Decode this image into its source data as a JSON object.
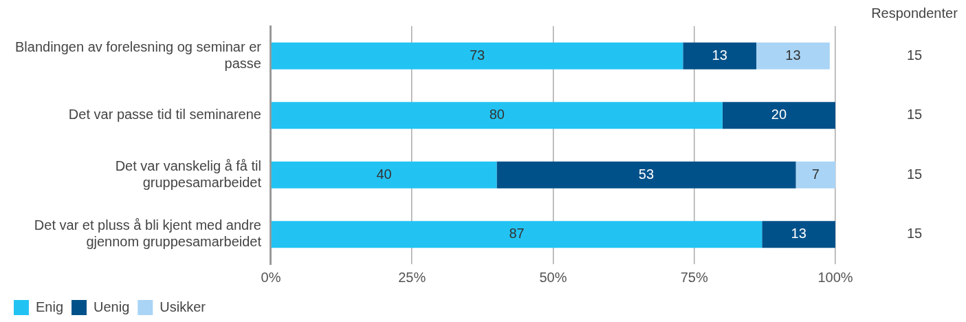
{
  "chart_data": {
    "type": "bar",
    "orientation": "horizontal",
    "stacked": true,
    "categories": [
      "Blandingen av forelesning og seminar er passe",
      "Det var passe tid til seminarene",
      "Det var vanskelig å få til gruppesamarbeidet",
      "Det var et pluss å bli kjent med andre gjennom gruppesamarbeidet"
    ],
    "series": [
      {
        "name": "Enig",
        "color": "#22c3f3",
        "values": [
          73,
          80,
          40,
          87
        ]
      },
      {
        "name": "Uenig",
        "color": "#00518a",
        "values": [
          13,
          20,
          53,
          13
        ]
      },
      {
        "name": "Usikker",
        "color": "#a9d4f5",
        "values": [
          13,
          null,
          7,
          null
        ]
      }
    ],
    "xlim": [
      0,
      100
    ],
    "xticks": [
      {
        "value": 0,
        "label": "0%"
      },
      {
        "value": 25,
        "label": "25%"
      },
      {
        "value": 50,
        "label": "50%"
      },
      {
        "value": 75,
        "label": "75%"
      },
      {
        "value": 100,
        "label": "100%"
      }
    ],
    "grid": "x",
    "legend": "bottom left",
    "data_labels": true,
    "annotations": [
      "Respondenter",
      "15",
      "15",
      "15",
      "15"
    ]
  }
}
